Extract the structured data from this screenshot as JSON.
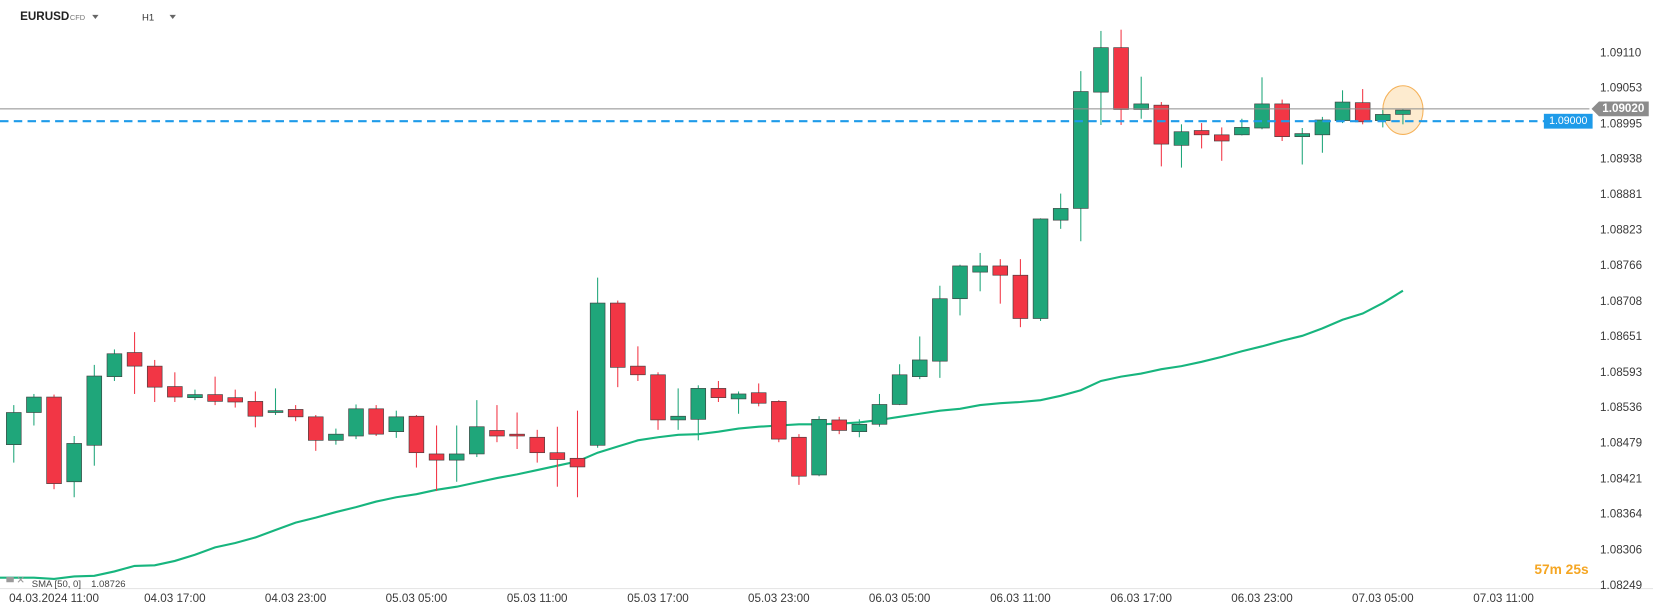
{
  "chart_data": {
    "type": "candlestick",
    "title": "EURUSD",
    "instrument_type": "CFD",
    "timeframe": "H1",
    "countdown": "57m 25s",
    "categories": [
      null,
      null,
      "04.03.2024 11:00",
      null,
      null,
      null,
      null,
      null,
      "04.03 17:00",
      null,
      null,
      null,
      null,
      null,
      "04.03 23:00",
      null,
      null,
      null,
      null,
      null,
      "05.03 05:00",
      null,
      null,
      null,
      null,
      null,
      "05.03 11:00",
      null,
      null,
      null,
      null,
      null,
      "05.03 17:00",
      null,
      null,
      null,
      null,
      null,
      "05.03 23:00",
      null,
      null,
      null,
      null,
      null,
      "06.03 05:00",
      null,
      null,
      null,
      null,
      null,
      "06.03 11:00",
      null,
      null,
      null,
      null,
      null,
      "06.03 17:00",
      null,
      null,
      null,
      null,
      null,
      "06.03 23:00",
      null,
      null,
      null,
      null,
      null,
      "07.03 05:00",
      null,
      null,
      null,
      null,
      null,
      "07.03 11:00",
      null
    ],
    "candles": {
      "up_color": "#1fa67a",
      "down_color": "#f23645",
      "open": [
        1.08477,
        1.08529,
        1.08554,
        1.08417,
        1.08476,
        1.08587,
        1.08626,
        1.08604,
        1.08571,
        1.08553,
        1.08558,
        1.08553,
        1.08547,
        1.08529,
        1.08534,
        1.08522,
        1.08484,
        1.08491,
        1.08535,
        1.08498,
        1.08523,
        1.08462,
        1.08452,
        1.08462,
        1.085,
        1.08494,
        1.08489,
        1.08464,
        1.08455,
        1.08476,
        1.08706,
        1.08604,
        1.0859,
        1.08517,
        1.08518,
        1.08568,
        1.08551,
        1.08561,
        1.08547,
        1.08489,
        1.08428,
        1.08517,
        1.08498,
        1.0851,
        1.08542,
        1.08587,
        1.08612,
        1.08713,
        1.08756,
        1.08766,
        1.08751,
        1.08681,
        1.0884,
        1.08859,
        1.09047,
        1.09119,
        1.09019,
        1.09026,
        1.08961,
        1.08985,
        1.08978,
        1.08978,
        1.08989,
        1.09028,
        1.08975,
        1.08978,
        1.09001,
        1.0903,
        1.09001,
        1.09011,
        null,
        null,
        null,
        null,
        null,
        null
      ],
      "high": [
        1.08541,
        1.08559,
        1.08558,
        1.08491,
        1.08606,
        1.08631,
        1.08659,
        1.08614,
        1.08594,
        1.08566,
        1.08587,
        1.08566,
        1.08563,
        1.08568,
        1.08541,
        1.08525,
        1.08503,
        1.08542,
        1.08541,
        1.08532,
        1.08525,
        1.08508,
        1.08508,
        1.08549,
        1.08541,
        1.08529,
        1.08501,
        1.08506,
        1.08532,
        1.08747,
        1.0871,
        1.08636,
        1.08594,
        1.08568,
        1.08573,
        1.0858,
        1.08563,
        1.08576,
        1.08549,
        1.08494,
        1.08523,
        1.08522,
        1.08518,
        1.08559,
        1.08607,
        1.08652,
        1.08734,
        1.08768,
        1.08787,
        1.08777,
        1.08777,
        1.08843,
        1.08883,
        1.09081,
        1.09146,
        1.09148,
        1.09072,
        1.09031,
        1.08995,
        1.08997,
        1.0899,
        1.09004,
        1.09071,
        1.09035,
        1.08989,
        1.09007,
        1.0905,
        1.09052,
        1.09018,
        1.09019,
        null,
        null,
        null,
        null,
        null,
        null
      ],
      "low": [
        1.08448,
        1.08508,
        1.08405,
        1.08392,
        1.08443,
        1.0858,
        1.08559,
        1.08546,
        1.08546,
        1.08549,
        1.08541,
        1.08537,
        1.08505,
        1.08525,
        1.08515,
        1.08467,
        1.08477,
        1.08486,
        1.08491,
        1.08488,
        1.0844,
        1.08402,
        1.08417,
        1.08457,
        1.08481,
        1.0847,
        1.08448,
        1.08409,
        1.08392,
        1.08472,
        1.0857,
        1.0858,
        1.08501,
        1.08501,
        1.08484,
        1.08546,
        1.08527,
        1.08539,
        1.08481,
        1.08412,
        1.08426,
        1.08494,
        1.08489,
        1.08506,
        1.08541,
        1.08583,
        1.08585,
        1.08686,
        1.08725,
        1.08705,
        1.08667,
        1.08677,
        1.08826,
        1.08806,
        1.08994,
        1.08994,
        1.09004,
        1.08927,
        1.08925,
        1.08956,
        1.08936,
        1.08977,
        1.08987,
        1.08968,
        1.0893,
        1.08949,
        1.08997,
        1.08995,
        1.0899,
        1.08995,
        null,
        null,
        null,
        null,
        null,
        null
      ],
      "close": [
        1.08529,
        1.08554,
        1.08414,
        1.08479,
        1.08588,
        1.08624,
        1.08604,
        1.0857,
        1.08554,
        1.08558,
        1.08547,
        1.08546,
        1.08523,
        1.08532,
        1.08522,
        1.08484,
        1.08494,
        1.08535,
        1.08494,
        1.08522,
        1.08464,
        1.08452,
        1.08462,
        1.08506,
        1.08491,
        1.08491,
        1.08464,
        1.08453,
        1.08441,
        1.08706,
        1.08602,
        1.0859,
        1.08517,
        1.08523,
        1.08568,
        1.08553,
        1.08559,
        1.08544,
        1.08486,
        1.08426,
        1.08518,
        1.085,
        1.0851,
        1.08542,
        1.0859,
        1.08614,
        1.08713,
        1.08766,
        1.08766,
        1.08751,
        1.08681,
        1.08842,
        1.08859,
        1.09048,
        1.09119,
        1.09019,
        1.09028,
        1.08963,
        1.08983,
        1.08978,
        1.08968,
        1.0899,
        1.09028,
        1.08975,
        1.0898,
        1.09002,
        1.09031,
        1.08999,
        1.09011,
        1.09018,
        null,
        null,
        null,
        null,
        null,
        null
      ]
    },
    "series": [
      {
        "name": "SMA [50, 0]",
        "color": "#17b57e",
        "values": [
          1.08262,
          1.08262,
          1.0826,
          1.08264,
          1.08265,
          1.08272,
          1.08281,
          1.08282,
          1.08289,
          1.08299,
          1.08311,
          1.08318,
          1.08327,
          1.08339,
          1.08351,
          1.08359,
          1.08368,
          1.08376,
          1.08385,
          1.08392,
          1.08397,
          1.08404,
          1.08409,
          1.08416,
          1.08423,
          1.08429,
          1.08436,
          1.08443,
          1.0845,
          1.08464,
          1.08474,
          1.08484,
          1.08489,
          1.08493,
          1.08494,
          1.08498,
          1.08503,
          1.08506,
          1.08508,
          1.0851,
          1.0851,
          1.08511,
          1.08513,
          1.08517,
          1.08522,
          1.08527,
          1.08532,
          1.08535,
          1.08541,
          1.08544,
          1.08546,
          1.08549,
          1.08556,
          1.08565,
          1.0858,
          1.08587,
          1.08592,
          1.08599,
          1.08604,
          1.08611,
          1.08619,
          1.08628,
          1.08636,
          1.08645,
          1.08653,
          1.08665,
          1.08679,
          1.08689,
          1.08706,
          1.08726,
          null,
          null,
          null,
          null,
          null,
          null
        ]
      }
    ],
    "price_lines": [
      {
        "value": 1.0902,
        "label": "1.09020",
        "color": "#8c8c8c",
        "dashed": false
      },
      {
        "value": 1.09,
        "label": "1.09000",
        "color": "#1e9be9",
        "dashed": true
      }
    ],
    "ylim": [
      1.08246,
      1.09196
    ],
    "yticks": [
      {
        "value": 1.0911,
        "label": "1.09110"
      },
      1.09053,
      1.08995,
      1.08938,
      1.08881,
      1.08823,
      1.08766,
      1.08708,
      1.08651,
      1.08593,
      1.08536,
      1.08479,
      1.08421,
      1.08364,
      1.08306,
      1.08249
    ],
    "grid": false
  }
}
